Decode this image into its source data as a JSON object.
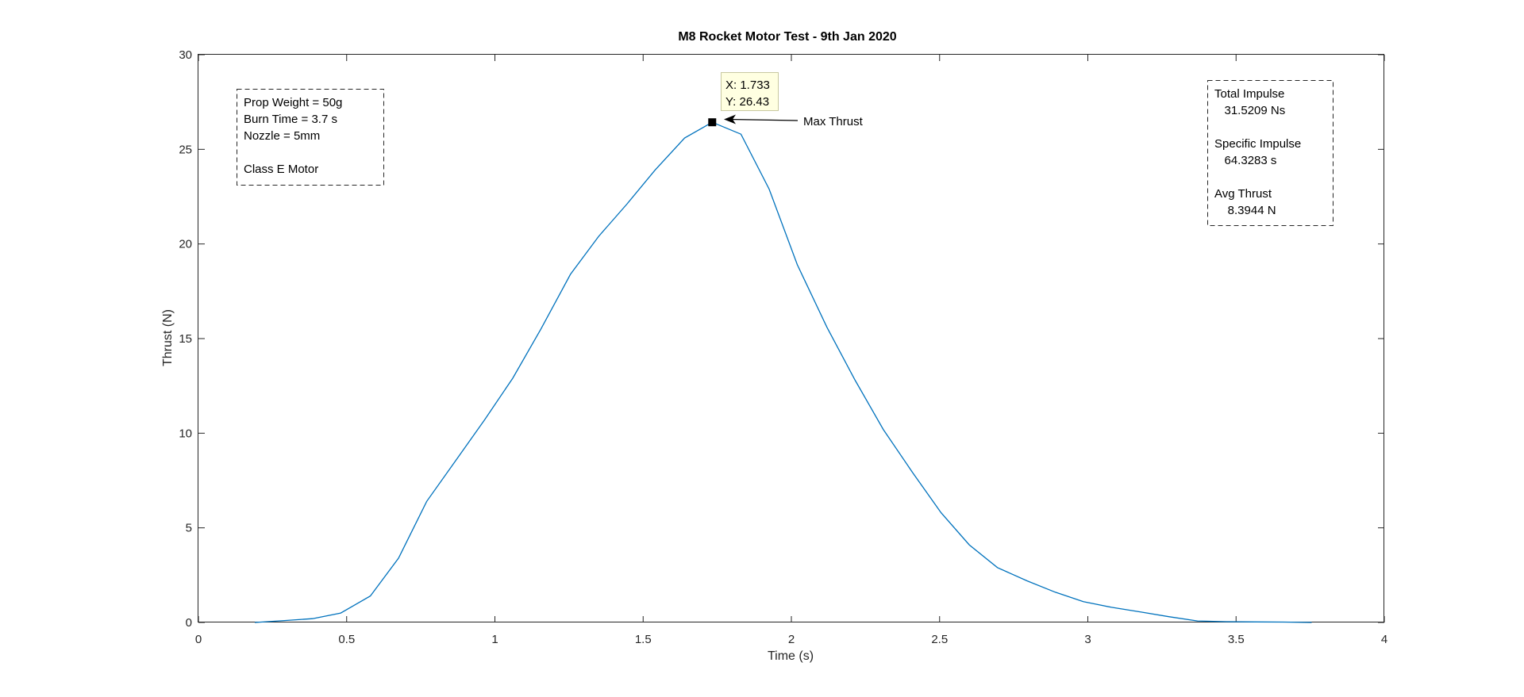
{
  "chart_data": {
    "type": "line",
    "title": "M8 Rocket Motor Test -  9th Jan 2020",
    "xlabel": "Time (s)",
    "ylabel": "Thrust (N)",
    "xlim": [
      0,
      4
    ],
    "ylim": [
      0,
      30
    ],
    "xticks": [
      "0",
      "0.5",
      "1",
      "1.5",
      "2",
      "2.5",
      "3",
      "3.5",
      "4"
    ],
    "yticks": [
      "0",
      "5",
      "10",
      "15",
      "20",
      "25",
      "30"
    ],
    "grid": false,
    "series": [
      {
        "color": "#0072BD",
        "x": [
          0.19,
          0.29,
          0.385,
          0.48,
          0.58,
          0.675,
          0.77,
          0.87,
          0.965,
          1.06,
          1.155,
          1.255,
          1.35,
          1.445,
          1.54,
          1.64,
          1.733,
          1.83,
          1.925,
          2.02,
          2.12,
          2.215,
          2.31,
          2.41,
          2.505,
          2.6,
          2.695,
          2.795,
          2.89,
          2.985,
          3.08,
          3.18,
          3.275,
          3.37,
          3.465,
          3.565,
          3.66,
          3.755
        ],
        "y": [
          0.0,
          0.1,
          0.2,
          0.5,
          1.4,
          3.4,
          6.4,
          8.6,
          10.7,
          12.9,
          15.5,
          18.4,
          20.4,
          22.1,
          23.9,
          25.6,
          26.43,
          25.8,
          22.9,
          18.9,
          15.6,
          12.8,
          10.2,
          7.9,
          5.8,
          4.1,
          2.9,
          2.2,
          1.6,
          1.1,
          0.8,
          0.55,
          0.3,
          0.08,
          0.04,
          0.03,
          0.02,
          0.0
        ]
      }
    ],
    "datatip": {
      "x_text": "X: 1.733",
      "y_text": "Y: 26.43",
      "x": 1.733,
      "y": 26.43
    },
    "arrow_label": "Max Thrust",
    "left_box": [
      "Prop Weight = 50g",
      "Burn Time = 3.7 s",
      "Nozzle = 5mm",
      "",
      "Class E Motor"
    ],
    "right_box": [
      "Total Impulse",
      "   31.5209 Ns",
      "",
      "Specific Impulse",
      "   64.3283 s",
      "",
      "Avg Thrust",
      "    8.3944 N"
    ]
  }
}
